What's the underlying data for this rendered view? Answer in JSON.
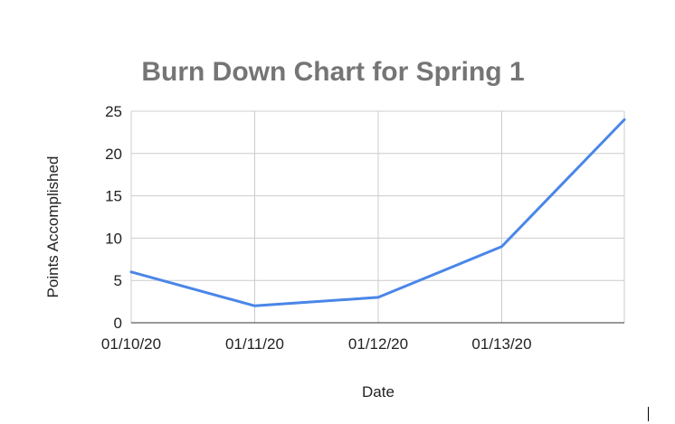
{
  "chart_data": {
    "type": "line",
    "title": "Burn Down Chart for Spring 1",
    "xlabel": "Date",
    "ylabel": "Points Accomplished",
    "x_tick_labels": [
      "01/10/20",
      "01/11/20",
      "01/12/20",
      "01/13/20"
    ],
    "ylim": [
      0,
      25
    ],
    "y_ticks": [
      0,
      5,
      10,
      15,
      20,
      25
    ],
    "grid": true,
    "legend": "none",
    "series": [
      {
        "color": "#4a86e8",
        "points": [
          {
            "x": "01/10/20",
            "y": 6
          },
          {
            "x": "01/11/20",
            "y": 2
          },
          {
            "x": "01/12/20",
            "y": 3
          },
          {
            "x": "01/13/20",
            "y": 9
          },
          {
            "x": "01/14/20",
            "y": 24
          }
        ]
      }
    ]
  }
}
